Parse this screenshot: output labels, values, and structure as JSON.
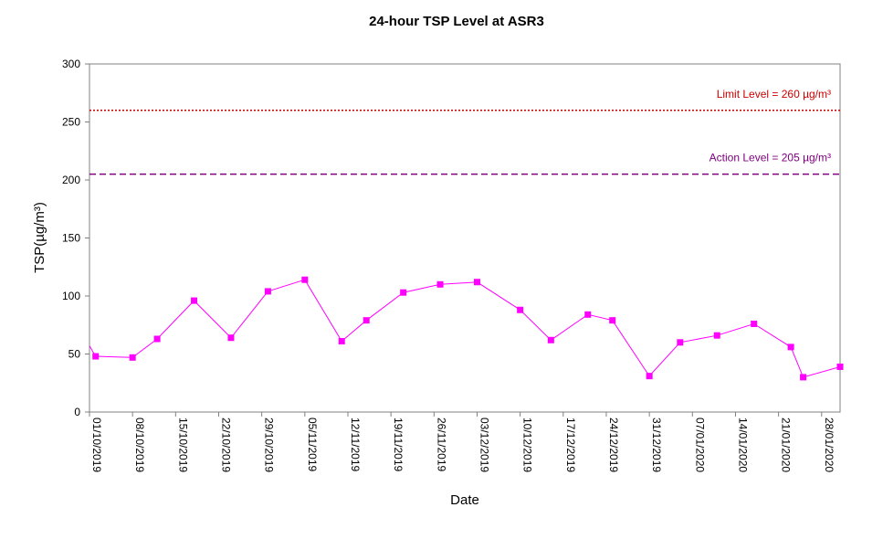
{
  "chart_data": {
    "type": "line",
    "title": "24-hour TSP Level at ASR3",
    "xlabel": "Date",
    "ylabel": "TSP(µg/m³)",
    "ylim": [
      0,
      300
    ],
    "yticks": [
      0,
      50,
      100,
      150,
      200,
      250,
      300
    ],
    "xlim": [
      "2019-10-01",
      "2020-01-31"
    ],
    "xtick_labels": [
      "01/10/2019",
      "08/10/2019",
      "15/10/2019",
      "22/10/2019",
      "29/10/2019",
      "05/11/2019",
      "12/11/2019",
      "19/11/2019",
      "26/11/2019",
      "03/12/2019",
      "10/12/2019",
      "17/12/2019",
      "24/12/2019",
      "31/12/2019",
      "07/01/2020",
      "14/01/2020",
      "21/01/2020",
      "28/01/2020"
    ],
    "grid": false,
    "series": [
      {
        "color": "#ff00ff",
        "marker": "square",
        "x": [
          "2019-09-30",
          "2019-10-02",
          "2019-10-08",
          "2019-10-12",
          "2019-10-18",
          "2019-10-24",
          "2019-10-30",
          "2019-11-05",
          "2019-11-11",
          "2019-11-15",
          "2019-11-21",
          "2019-11-27",
          "2019-12-03",
          "2019-12-10",
          "2019-12-15",
          "2019-12-21",
          "2019-12-25",
          "2019-12-31",
          "2020-01-05",
          "2020-01-11",
          "2020-01-17",
          "2020-01-23",
          "2020-01-25",
          "2020-01-31"
        ],
        "y": [
          57,
          48,
          47,
          63,
          96,
          64,
          104,
          114,
          61,
          79,
          103,
          110,
          112,
          88,
          62,
          84,
          79,
          31,
          60,
          66,
          76,
          56,
          30,
          39
        ]
      }
    ],
    "reference_lines": [
      {
        "label": "Limit Level  = 260 µg/m³",
        "value": 260,
        "color": "#cc0000",
        "style": "dotted"
      },
      {
        "label": "Action Level  = 205 µg/m³",
        "value": 205,
        "color": "#800080",
        "style": "dashed"
      }
    ]
  }
}
